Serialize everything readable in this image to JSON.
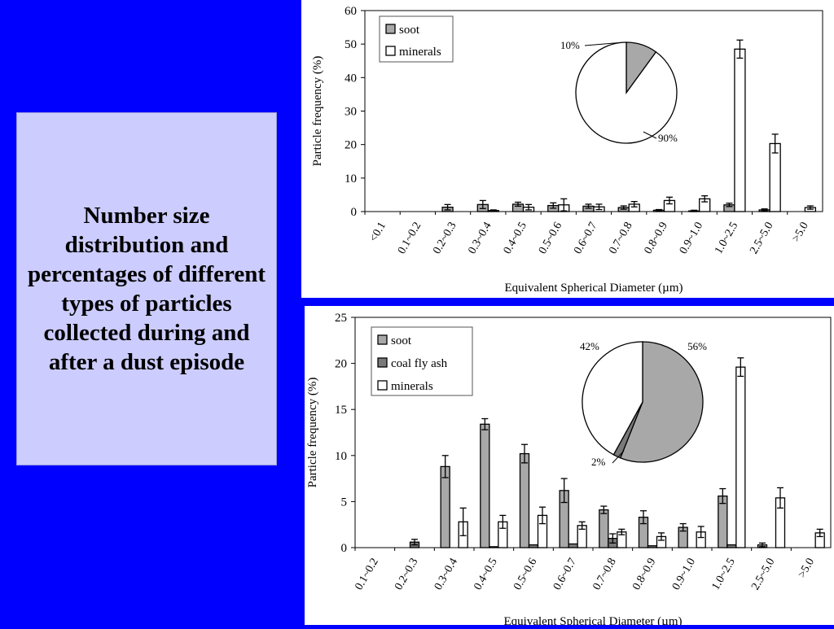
{
  "caption": "Number size distribution and percentages of different types of particles collected during and after a dust episode",
  "colors": {
    "background": "#0000FF",
    "caption_bg": "#CCCCFF",
    "soot": "#A8A8A8",
    "coal": "#7A7A7A",
    "minerals": "#FFFFFF"
  },
  "chart_data": [
    {
      "type": "bar",
      "xlabel": "Equivalent Spherical Diameter (µm)",
      "ylabel": "Particle frequency (%)",
      "ylim": [
        0,
        60
      ],
      "yticks": [
        0,
        10,
        20,
        30,
        40,
        50,
        60
      ],
      "grid": false,
      "legend_position": "top-left",
      "categories": [
        "<0.1",
        "0.1~0.2",
        "0.2~0.3",
        "0.3~0.4",
        "0.4~0.5",
        "0.5~0.6",
        "0.6~0.7",
        "0.7~0.8",
        "0.8~0.9",
        "0.9~1.0",
        "1.0~2.5",
        "2.5~5.0",
        ">5.0"
      ],
      "series": [
        {
          "name": "soot",
          "color": "#A8A8A8",
          "values": [
            0,
            0,
            1.3,
            2.1,
            2.2,
            1.8,
            1.6,
            1.2,
            0.4,
            0.2,
            2.0,
            0.5,
            0
          ],
          "errors": [
            0,
            0,
            0.8,
            1.2,
            0.6,
            0.8,
            0.6,
            0.5,
            0.2,
            0.2,
            0.5,
            0.3,
            0
          ]
        },
        {
          "name": "minerals",
          "color": "#FFFFFF",
          "values": [
            0,
            0,
            0,
            0.3,
            1.3,
            2.0,
            1.4,
            2.2,
            3.3,
            3.8,
            48.5,
            20.3,
            1.2
          ],
          "errors": [
            0,
            0,
            0,
            0.2,
            0.8,
            1.8,
            0.8,
            0.8,
            1.0,
            0.9,
            2.7,
            2.8,
            0.5
          ]
        }
      ],
      "inset_pie": {
        "slices": [
          {
            "name": "soot",
            "value": 10,
            "label": "10%",
            "color": "#A8A8A8"
          },
          {
            "name": "minerals",
            "value": 90,
            "label": "90%",
            "color": "#FFFFFF"
          }
        ]
      }
    },
    {
      "type": "bar",
      "xlabel": "Equivalent Spherical Diameter (µm)",
      "ylabel": "Particle frequency (%)",
      "ylim": [
        0,
        25
      ],
      "yticks": [
        0,
        5,
        10,
        15,
        20,
        25
      ],
      "grid": false,
      "legend_position": "top-left",
      "categories": [
        "0.1~0.2",
        "0.2~0.3",
        "0.3~0.4",
        "0.4~0.5",
        "0.5~0.6",
        "0.6~0.7",
        "0.7~0.8",
        "0.8~0.9",
        "0.9~1.0",
        "1.0~2.5",
        "2.5~5.0",
        ">5.0"
      ],
      "series": [
        {
          "name": "soot",
          "color": "#A8A8A8",
          "values": [
            0,
            0,
            8.8,
            13.4,
            10.2,
            6.2,
            4.1,
            3.3,
            2.2,
            5.6,
            0.3,
            0
          ],
          "errors": [
            0,
            0,
            1.2,
            0.6,
            1.0,
            1.3,
            0.4,
            0.7,
            0.4,
            0.8,
            0.2,
            0
          ]
        },
        {
          "name": "coal fly ash",
          "color": "#7A7A7A",
          "values": [
            0,
            0.6,
            0,
            0.1,
            0.3,
            0.4,
            1.0,
            0.2,
            0,
            0.3,
            0,
            0
          ],
          "errors": [
            0,
            0.3,
            0,
            0,
            0,
            0,
            0.5,
            0,
            0,
            0,
            0,
            0
          ]
        },
        {
          "name": "minerals",
          "color": "#FFFFFF",
          "values": [
            0,
            0,
            2.8,
            2.8,
            3.5,
            2.4,
            1.7,
            1.2,
            1.7,
            19.6,
            5.4,
            1.6
          ],
          "errors": [
            0,
            0,
            1.5,
            0.7,
            0.9,
            0.4,
            0.3,
            0.4,
            0.6,
            1.0,
            1.1,
            0.4
          ]
        }
      ],
      "inset_pie": {
        "slices": [
          {
            "name": "soot",
            "value": 56,
            "label": "56%",
            "color": "#A8A8A8"
          },
          {
            "name": "coal fly ash",
            "value": 2,
            "label": "2%",
            "color": "#7A7A7A"
          },
          {
            "name": "minerals",
            "value": 42,
            "label": "42%",
            "color": "#FFFFFF"
          }
        ]
      }
    }
  ]
}
